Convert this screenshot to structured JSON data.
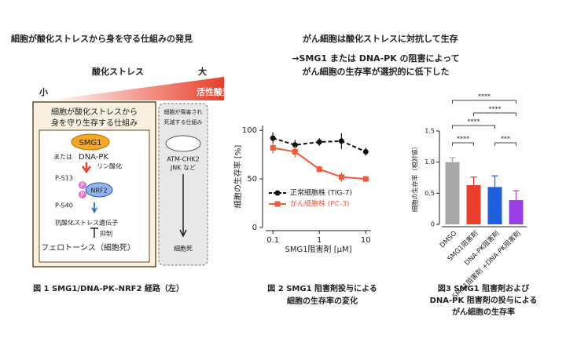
{
  "figure1": {
    "title": "細胞が酸化ストレスから身を守る仕組みの発見",
    "scale_label": "酸化ストレス",
    "small": "小",
    "large": "大",
    "ros": "活性酸素",
    "box_title": [
      "細胞が酸化ストレスから",
      "身を守り生存する仕組み"
    ],
    "smg1": "SMG1",
    "or": "または",
    "dnapk": "DNA-PK",
    "phos": "リン酸化",
    "ps13": "P-S13",
    "p": "P",
    "nrf2": "NRF2",
    "ps40": "P-S40",
    "genes": "抗酸化ストレス遺伝子",
    "suppress": "抑制",
    "ferro": "フェロトーシス（細胞死）",
    "death_title": [
      "細胞が傷害され",
      "死滅する仕組み"
    ],
    "death_path": [
      "ATM-CHK2",
      "JNK など"
    ],
    "death": "細胞死",
    "caption": "図 1 SMG1/DNA-PK–NRF2 経路（左）"
  },
  "header": {
    "title": "がん細胞は酸化ストレスに対抗して生存",
    "subtitle": [
      "→SMG1 または DNA-PK の阻害によって",
      "がん細胞の生存率が選択的に低下した"
    ]
  },
  "chart_data": [
    {
      "type": "line",
      "x": [
        0.1,
        0.3,
        1,
        3,
        10
      ],
      "xlim": [
        0.07,
        13
      ],
      "xscale": "log",
      "xticks": [
        0.1,
        1,
        10
      ],
      "ylim": [
        0,
        105
      ],
      "yticks": [
        0,
        50,
        100
      ],
      "xlabel": "SMG1阻害剤 [μM]",
      "ylabel": "細胞の生存率 [%]",
      "series": [
        {
          "name": "正常細胞株 (TIG-7)",
          "color": "#111111",
          "dash": true,
          "marker": "circle",
          "values": [
            92,
            85,
            88,
            89,
            78
          ],
          "errors": [
            6,
            5,
            4,
            8,
            4
          ]
        },
        {
          "name": "がん細胞株 (PC-3)",
          "color": "#ee5a3a",
          "dash": false,
          "marker": "square",
          "values": [
            82,
            78,
            60,
            52,
            50
          ],
          "errors": [
            6,
            6,
            3,
            5,
            3
          ]
        }
      ],
      "caption": [
        "図 2 SMG1 阻害剤投与による",
        "細胞の生存率の変化"
      ]
    },
    {
      "type": "bar",
      "categories": [
        "DMSO",
        "SMG1阻害剤",
        "DNA-PK阻害剤",
        "SMG1阻害剤 +DNA-PK阻害剤"
      ],
      "values": [
        1.0,
        0.63,
        0.6,
        0.39
      ],
      "errors": [
        0.07,
        0.13,
        0.18,
        0.15
      ],
      "colors": [
        "#a8a8a8",
        "#e8402a",
        "#1e5fe0",
        "#9b3ee8"
      ],
      "ylim": [
        0,
        1.5
      ],
      "yticks": [
        0,
        0.5,
        {
          "value": 1.0,
          "label": "1.0"
        },
        1.5
      ],
      "ylabel": "細胞の生存率（相対値）",
      "significance": [
        {
          "from": 0,
          "to": 1,
          "label": "****"
        },
        {
          "from": 2,
          "to": 3,
          "label": "***"
        },
        {
          "from": 0,
          "to": 2,
          "label": "****"
        },
        {
          "from": 1,
          "to": 3,
          "label": "****"
        },
        {
          "from": 0,
          "to": 3,
          "label": "****"
        }
      ],
      "caption": [
        "図3 SMG1 阻害剤および",
        "DNA-PK 阻害剤の投与による",
        "がん細胞の生存率"
      ]
    }
  ]
}
